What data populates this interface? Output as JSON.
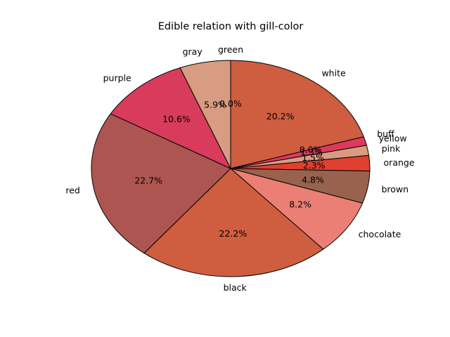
{
  "chart_data": {
    "type": "pie",
    "title": "Edible relation with gill-color",
    "start_angle_deg": 90,
    "direction": "clockwise",
    "slices": [
      {
        "label": "green",
        "value": 0.0,
        "pct_label": "0.0%",
        "color": "#cf5d3f"
      },
      {
        "label": "white",
        "value": 20.2,
        "pct_label": "20.2%",
        "color": "#cf5d3f"
      },
      {
        "label": "buff",
        "value": 0.0,
        "pct_label": "0.0%",
        "color": "#dc3a5d"
      },
      {
        "label": "yellow",
        "value": 1.3,
        "pct_label": "1.3%",
        "color": "#dc3a5d"
      },
      {
        "label": "pink",
        "value": 1.5,
        "pct_label": "1.5%",
        "color": "#d99c82"
      },
      {
        "label": "orange",
        "value": 2.3,
        "pct_label": "2.3%",
        "color": "#e0402f"
      },
      {
        "label": "brown",
        "value": 4.8,
        "pct_label": "4.8%",
        "color": "#98624e"
      },
      {
        "label": "chocolate",
        "value": 8.2,
        "pct_label": "8.2%",
        "color": "#ec7f75"
      },
      {
        "label": "black",
        "value": 22.2,
        "pct_label": "22.2%",
        "color": "#cf5d3f"
      },
      {
        "label": "red",
        "value": 22.7,
        "pct_label": "22.7%",
        "color": "#ad5651"
      },
      {
        "label": "purple",
        "value": 10.6,
        "pct_label": "10.6%",
        "color": "#d83b5c"
      },
      {
        "label": "gray",
        "value": 5.9,
        "pct_label": "5.9%",
        "color": "#d89c82"
      }
    ]
  }
}
